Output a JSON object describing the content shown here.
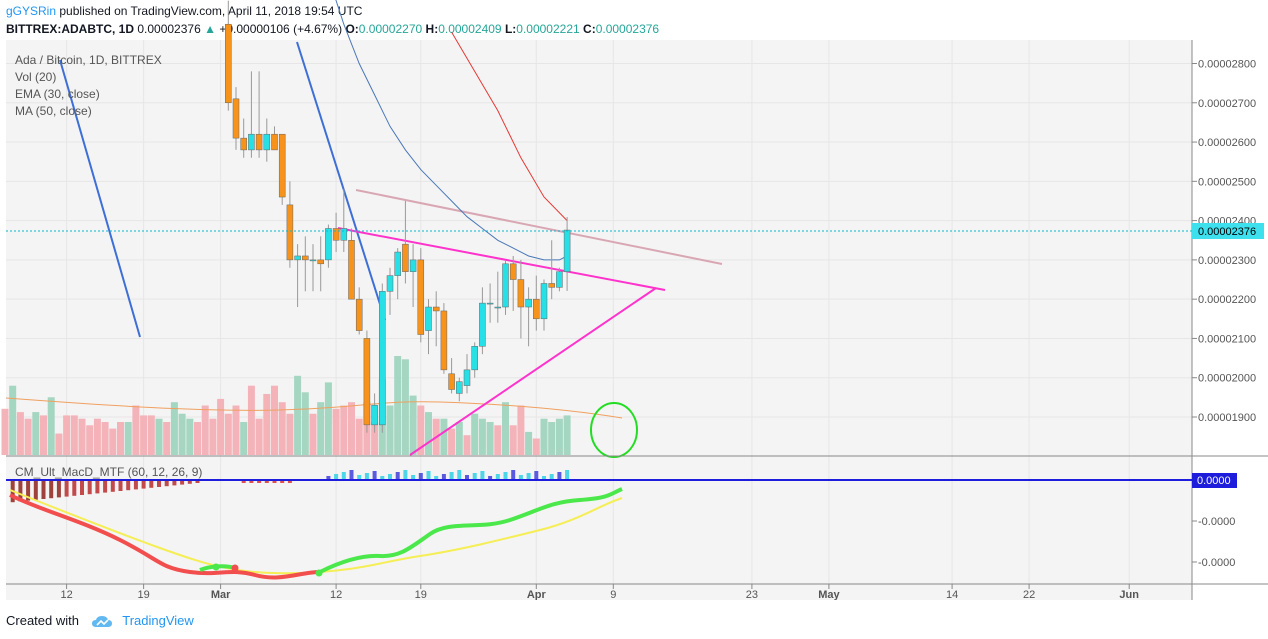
{
  "header": {
    "author": "gGYSRin",
    "published_text": "published on TradingView.com, April 11, 2018 19:54 UTC",
    "symbol": "BITTREX:ADABTC, 1D",
    "last": "0.00002376",
    "change_arrow": "▲",
    "change": "+0.00000106 (+4.67%)",
    "o_label": "O:",
    "o_value": "0.00002270",
    "h_label": "H:",
    "h_value": "0.00002409",
    "l_label": "L:",
    "l_value": "0.00002221",
    "c_label": "C:",
    "c_value": "0.00002376"
  },
  "legend": {
    "title": "Ada / Bitcoin, 1D, BITTREX",
    "vol": "Vol (20)",
    "ema": "EMA (30, close)",
    "ma": "MA (50, close)",
    "macd": "CM_Ult_MacD_MTF (60, 12, 26, 9)"
  },
  "footer": {
    "created_with": "Created with",
    "brand": "TradingView"
  },
  "colors": {
    "up": "#26e0e6",
    "down": "#f7931a",
    "vol_up": "#a5d6c2",
    "vol_down": "#f4b3b8",
    "ema": "#4a78b8",
    "ma": "#e53935",
    "pink": "#ff33cc",
    "trend_light": "#d9a7b3",
    "blue_line": "#3d6fd6",
    "price_line": "#00bcd4",
    "macd_axis": "#1d1ddb"
  },
  "chart_data": {
    "type": "candlestick",
    "price_axis": {
      "ticks": [
        "0.00002800",
        "0.00002700",
        "0.00002600",
        "0.00002500",
        "0.00002400",
        "0.00002300",
        "0.00002200",
        "0.00002100",
        "0.00002000",
        "0.00001900"
      ],
      "tick_values": [
        2.8e-05,
        2.7e-05,
        2.6e-05,
        2.5e-05,
        2.4e-05,
        2.3e-05,
        2.2e-05,
        2.1e-05,
        2e-05,
        1.9e-05
      ],
      "range": [
        1.85e-05,
        2.83e-05
      ],
      "current_label": "0.00002376",
      "current_value": 2.376e-05
    },
    "x_axis": {
      "labels": [
        "12",
        "19",
        "Mar",
        "12",
        "19",
        "Apr",
        "9",
        "23",
        "May",
        "14",
        "22",
        "Jun"
      ],
      "label_slots": [
        8,
        18,
        28,
        43,
        54,
        69,
        79,
        97,
        107,
        123,
        133,
        146
      ],
      "slot_range": [
        0,
        156
      ],
      "slot_unit": "day",
      "slot_0_date": "2018-02-04"
    },
    "candles": [
      {
        "slot": 29,
        "o": 2900,
        "h": 2960,
        "l": 2680,
        "c": 2700
      },
      {
        "slot": 30,
        "o": 2710,
        "h": 2740,
        "l": 2580,
        "c": 2610
      },
      {
        "slot": 31,
        "o": 2610,
        "h": 2660,
        "l": 2560,
        "c": 2580
      },
      {
        "slot": 32,
        "o": 2580,
        "h": 2780,
        "l": 2560,
        "c": 2620
      },
      {
        "slot": 33,
        "o": 2620,
        "h": 2780,
        "l": 2560,
        "c": 2580
      },
      {
        "slot": 34,
        "o": 2580,
        "h": 2660,
        "l": 2550,
        "c": 2620
      },
      {
        "slot": 35,
        "o": 2620,
        "h": 2640,
        "l": 2580,
        "c": 2580
      },
      {
        "slot": 36,
        "o": 2620,
        "h": 2620,
        "l": 2440,
        "c": 2460
      },
      {
        "slot": 37,
        "o": 2440,
        "h": 2500,
        "l": 2280,
        "c": 2300
      },
      {
        "slot": 38,
        "o": 2300,
        "h": 2340,
        "l": 2180,
        "c": 2310
      },
      {
        "slot": 39,
        "o": 2310,
        "h": 2360,
        "l": 2220,
        "c": 2300
      },
      {
        "slot": 40,
        "o": 2300,
        "h": 2340,
        "l": 2220,
        "c": 2300
      },
      {
        "slot": 41,
        "o": 2300,
        "h": 2360,
        "l": 2220,
        "c": 2290
      },
      {
        "slot": 42,
        "o": 2300,
        "h": 2390,
        "l": 2280,
        "c": 2380
      },
      {
        "slot": 43,
        "o": 2380,
        "h": 2420,
        "l": 2320,
        "c": 2350
      },
      {
        "slot": 44,
        "o": 2350,
        "h": 2480,
        "l": 2320,
        "c": 2380
      },
      {
        "slot": 45,
        "o": 2350,
        "h": 2380,
        "l": 2200,
        "c": 2200
      },
      {
        "slot": 46,
        "o": 2200,
        "h": 2230,
        "l": 2110,
        "c": 2120
      },
      {
        "slot": 47,
        "o": 2100,
        "h": 2120,
        "l": 1860,
        "c": 1880
      },
      {
        "slot": 48,
        "o": 1880,
        "h": 1960,
        "l": 1860,
        "c": 1930
      },
      {
        "slot": 49,
        "o": 1880,
        "h": 2240,
        "l": 1860,
        "c": 2220
      },
      {
        "slot": 50,
        "o": 2220,
        "h": 2280,
        "l": 2160,
        "c": 2260
      },
      {
        "slot": 51,
        "o": 2260,
        "h": 2330,
        "l": 2200,
        "c": 2320
      },
      {
        "slot": 52,
        "o": 2340,
        "h": 2450,
        "l": 2240,
        "c": 2270
      },
      {
        "slot": 53,
        "o": 2270,
        "h": 2340,
        "l": 2180,
        "c": 2300
      },
      {
        "slot": 54,
        "o": 2300,
        "h": 2330,
        "l": 2090,
        "c": 2110
      },
      {
        "slot": 55,
        "o": 2120,
        "h": 2200,
        "l": 2060,
        "c": 2180
      },
      {
        "slot": 56,
        "o": 2180,
        "h": 2220,
        "l": 2080,
        "c": 2170
      },
      {
        "slot": 57,
        "o": 2170,
        "h": 2190,
        "l": 2010,
        "c": 2020
      },
      {
        "slot": 58,
        "o": 2010,
        "h": 2050,
        "l": 1960,
        "c": 1970
      },
      {
        "slot": 59,
        "o": 1960,
        "h": 2000,
        "l": 1940,
        "c": 1990
      },
      {
        "slot": 60,
        "o": 1980,
        "h": 2060,
        "l": 1960,
        "c": 2020
      },
      {
        "slot": 61,
        "o": 2020,
        "h": 2090,
        "l": 2000,
        "c": 2080
      },
      {
        "slot": 62,
        "o": 2080,
        "h": 2230,
        "l": 2060,
        "c": 2190
      },
      {
        "slot": 63,
        "o": 2190,
        "h": 2240,
        "l": 2140,
        "c": 2190
      },
      {
        "slot": 64,
        "o": 2180,
        "h": 2270,
        "l": 2140,
        "c": 2180
      },
      {
        "slot": 65,
        "o": 2180,
        "h": 2300,
        "l": 2160,
        "c": 2290
      },
      {
        "slot": 66,
        "o": 2290,
        "h": 2310,
        "l": 2170,
        "c": 2250
      },
      {
        "slot": 67,
        "o": 2250,
        "h": 2300,
        "l": 2100,
        "c": 2180
      },
      {
        "slot": 68,
        "o": 2180,
        "h": 2230,
        "l": 2080,
        "c": 2200
      },
      {
        "slot": 69,
        "o": 2200,
        "h": 2260,
        "l": 2120,
        "c": 2150
      },
      {
        "slot": 70,
        "o": 2150,
        "h": 2250,
        "l": 2120,
        "c": 2240
      },
      {
        "slot": 71,
        "o": 2240,
        "h": 2350,
        "l": 2200,
        "c": 2230
      },
      {
        "slot": 72,
        "o": 2230,
        "h": 2280,
        "l": 2220,
        "c": 2270
      },
      {
        "slot": 73,
        "o": 2270,
        "h": 2409,
        "l": 2221,
        "c": 2376
      }
    ],
    "volume": [
      {
        "slot": 0,
        "v": 0.28,
        "d": 1
      },
      {
        "slot": 1,
        "v": 0.42,
        "d": 0
      },
      {
        "slot": 2,
        "v": 0.26,
        "d": 1
      },
      {
        "slot": 3,
        "v": 0.22,
        "d": 1
      },
      {
        "slot": 4,
        "v": 0.26,
        "d": 0
      },
      {
        "slot": 5,
        "v": 0.24,
        "d": 1
      },
      {
        "slot": 6,
        "v": 0.35,
        "d": 0
      },
      {
        "slot": 7,
        "v": 0.13,
        "d": 1
      },
      {
        "slot": 8,
        "v": 0.24,
        "d": 1
      },
      {
        "slot": 9,
        "v": 0.24,
        "d": 1
      },
      {
        "slot": 10,
        "v": 0.22,
        "d": 1
      },
      {
        "slot": 11,
        "v": 0.18,
        "d": 1
      },
      {
        "slot": 12,
        "v": 0.22,
        "d": 1
      },
      {
        "slot": 13,
        "v": 0.2,
        "d": 1
      },
      {
        "slot": 14,
        "v": 0.16,
        "d": 1
      },
      {
        "slot": 15,
        "v": 0.2,
        "d": 1
      },
      {
        "slot": 16,
        "v": 0.2,
        "d": 0
      },
      {
        "slot": 17,
        "v": 0.3,
        "d": 1
      },
      {
        "slot": 18,
        "v": 0.24,
        "d": 1
      },
      {
        "slot": 19,
        "v": 0.24,
        "d": 1
      },
      {
        "slot": 20,
        "v": 0.22,
        "d": 0
      },
      {
        "slot": 21,
        "v": 0.2,
        "d": 1
      },
      {
        "slot": 22,
        "v": 0.32,
        "d": 0
      },
      {
        "slot": 23,
        "v": 0.25,
        "d": 0
      },
      {
        "slot": 24,
        "v": 0.22,
        "d": 0
      },
      {
        "slot": 25,
        "v": 0.2,
        "d": 1
      },
      {
        "slot": 26,
        "v": 0.3,
        "d": 1
      },
      {
        "slot": 27,
        "v": 0.22,
        "d": 1
      },
      {
        "slot": 28,
        "v": 0.34,
        "d": 1
      },
      {
        "slot": 29,
        "v": 0.25,
        "d": 1
      },
      {
        "slot": 30,
        "v": 0.3,
        "d": 1
      },
      {
        "slot": 31,
        "v": 0.2,
        "d": 0
      },
      {
        "slot": 32,
        "v": 0.42,
        "d": 1
      },
      {
        "slot": 33,
        "v": 0.22,
        "d": 1
      },
      {
        "slot": 34,
        "v": 0.37,
        "d": 1
      },
      {
        "slot": 35,
        "v": 0.42,
        "d": 1
      },
      {
        "slot": 36,
        "v": 0.32,
        "d": 1
      },
      {
        "slot": 37,
        "v": 0.25,
        "d": 1
      },
      {
        "slot": 38,
        "v": 0.48,
        "d": 0
      },
      {
        "slot": 39,
        "v": 0.38,
        "d": 0
      },
      {
        "slot": 40,
        "v": 0.25,
        "d": 1
      },
      {
        "slot": 41,
        "v": 0.32,
        "d": 0
      },
      {
        "slot": 42,
        "v": 0.44,
        "d": 0
      },
      {
        "slot": 43,
        "v": 0.28,
        "d": 1
      },
      {
        "slot": 44,
        "v": 0.3,
        "d": 1
      },
      {
        "slot": 45,
        "v": 0.32,
        "d": 1
      },
      {
        "slot": 46,
        "v": 0.22,
        "d": 1
      },
      {
        "slot": 47,
        "v": 0.32,
        "d": 1
      },
      {
        "slot": 48,
        "v": 0.2,
        "d": 1
      },
      {
        "slot": 49,
        "v": 0.46,
        "d": 0
      },
      {
        "slot": 50,
        "v": 0.3,
        "d": 0
      },
      {
        "slot": 51,
        "v": 0.6,
        "d": 0
      },
      {
        "slot": 52,
        "v": 0.58,
        "d": 0
      },
      {
        "slot": 53,
        "v": 0.36,
        "d": 0
      },
      {
        "slot": 54,
        "v": 0.3,
        "d": 1
      },
      {
        "slot": 55,
        "v": 0.26,
        "d": 0
      },
      {
        "slot": 56,
        "v": 0.22,
        "d": 1
      },
      {
        "slot": 57,
        "v": 0.22,
        "d": 0
      },
      {
        "slot": 58,
        "v": 0.16,
        "d": 1
      },
      {
        "slot": 59,
        "v": 0.2,
        "d": 0
      },
      {
        "slot": 60,
        "v": 0.12,
        "d": 1
      },
      {
        "slot": 61,
        "v": 0.25,
        "d": 0
      },
      {
        "slot": 62,
        "v": 0.22,
        "d": 0
      },
      {
        "slot": 63,
        "v": 0.2,
        "d": 0
      },
      {
        "slot": 64,
        "v": 0.18,
        "d": 1
      },
      {
        "slot": 65,
        "v": 0.32,
        "d": 0
      },
      {
        "slot": 66,
        "v": 0.18,
        "d": 1
      },
      {
        "slot": 67,
        "v": 0.3,
        "d": 1
      },
      {
        "slot": 68,
        "v": 0.14,
        "d": 0
      },
      {
        "slot": 69,
        "v": 0.1,
        "d": 1
      },
      {
        "slot": 70,
        "v": 0.22,
        "d": 0
      },
      {
        "slot": 71,
        "v": 0.2,
        "d": 0
      },
      {
        "slot": 72,
        "v": 0.22,
        "d": 0
      },
      {
        "slot": 73,
        "v": 0.24,
        "d": 0
      }
    ],
    "ema": [
      [
        42,
        3020
      ],
      [
        44,
        2900
      ],
      [
        46,
        2800
      ],
      [
        48,
        2720
      ],
      [
        50,
        2640
      ],
      [
        52,
        2580
      ],
      [
        54,
        2530
      ],
      [
        56,
        2490
      ],
      [
        58,
        2450
      ],
      [
        60,
        2410
      ],
      [
        62,
        2380
      ],
      [
        64,
        2350
      ],
      [
        66,
        2330
      ],
      [
        68,
        2310
      ],
      [
        70,
        2300
      ],
      [
        72,
        2300
      ],
      [
        73,
        2310
      ]
    ],
    "ma": [
      [
        58,
        2880
      ],
      [
        61,
        2780
      ],
      [
        64,
        2680
      ],
      [
        67,
        2560
      ],
      [
        70,
        2460
      ],
      [
        73,
        2400
      ]
    ],
    "macd_axis": {
      "ticks": [
        "0.0000",
        "-0.0000",
        "-0.0000"
      ],
      "tick_values": [
        0,
        -1,
        -2
      ],
      "current_label": "0.0000",
      "current_value": 0
    }
  }
}
